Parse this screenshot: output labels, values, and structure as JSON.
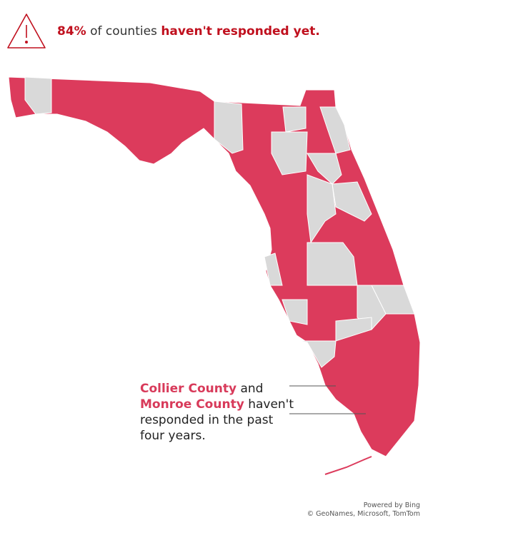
{
  "header": {
    "percent": "84%",
    "text": "of counties",
    "emphasis": "haven't responded yet."
  },
  "annotation": {
    "county_1": "Collier County",
    "conjunction": "and",
    "county_2": "Monroe County",
    "text": "haven't responded in the past four years."
  },
  "attribution": {
    "line_1": "Powered by Bing",
    "line_2": "© GeoNames, Microsoft, TomTom"
  }
}
